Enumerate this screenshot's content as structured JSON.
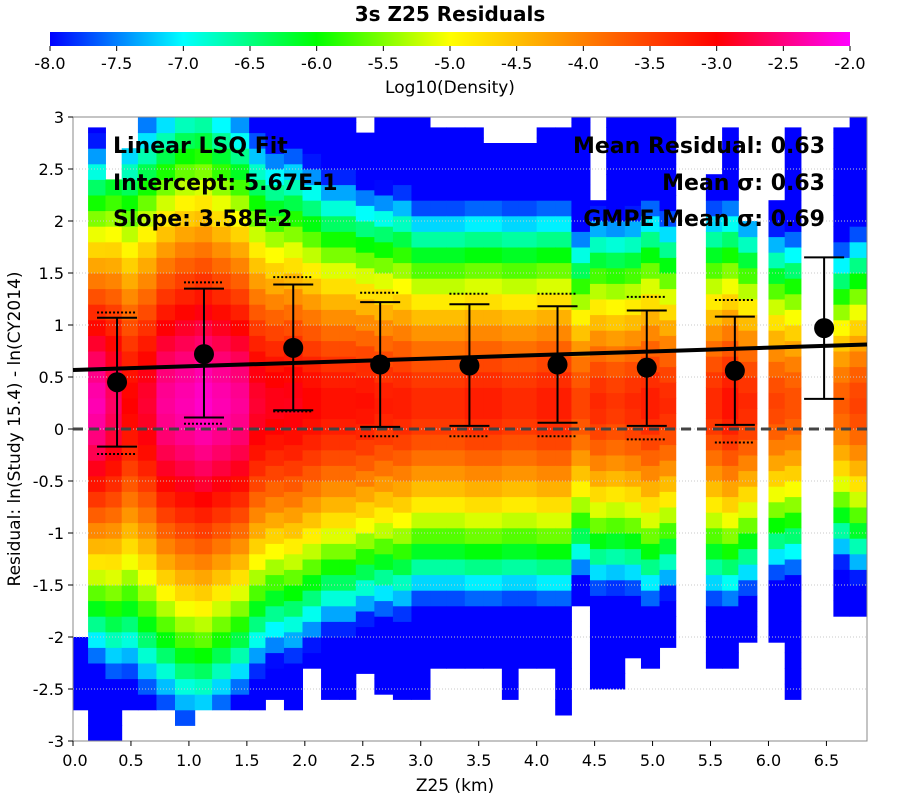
{
  "chart_data": {
    "type": "heatmap",
    "title": "3s Z25 Residuals",
    "xlabel": "Z25 (km)",
    "ylabel": "Residual: ln(Study 15.4) - ln(CY2014)",
    "xlim": [
      0.0,
      6.85
    ],
    "ylim": [
      -3,
      3
    ],
    "x_ticks": [
      "0.0",
      "0.5",
      "1.0",
      "1.5",
      "2.0",
      "2.5",
      "3.0",
      "3.5",
      "4.0",
      "4.5",
      "5.0",
      "5.5",
      "6.0",
      "6.5"
    ],
    "y_ticks": [
      "-3",
      "-2.5",
      "-2",
      "-1.5",
      "-1",
      "-0.5",
      "0",
      "0.5",
      "1",
      "1.5",
      "2",
      "2.5",
      "3"
    ],
    "grid": true,
    "colorbar": {
      "label": "Log10(Density)",
      "min": -8.0,
      "max": -2.0,
      "ticks": [
        "-8.0",
        "-7.5",
        "-7.0",
        "-6.5",
        "-6.0",
        "-5.5",
        "-5.0",
        "-4.5",
        "-4.0",
        "-3.5",
        "-3.0",
        "-2.5",
        "-2.0"
      ],
      "colors": [
        "#0000ff",
        "#00ffff",
        "#00ff00",
        "#ffff00",
        "#ff8000",
        "#ff0000",
        "#ff00ff"
      ]
    },
    "density_columns": [
      {
        "x0": 0.0,
        "x1": 0.13,
        "ymin": -2.7,
        "ymax": -2.0,
        "peak": -2.1,
        "spread": 1.6
      },
      {
        "x0": 0.13,
        "x1": 0.28,
        "ymin": -3.0,
        "ymax": 2.9,
        "peak": -2.3,
        "spread": 2.2
      },
      {
        "x0": 0.28,
        "x1": 0.42,
        "ymin": -3.0,
        "ymax": 2.4,
        "peak": -2.6,
        "spread": 2.4
      },
      {
        "x0": 0.42,
        "x1": 0.56,
        "ymin": -2.7,
        "ymax": 2.7,
        "peak": -3.0,
        "spread": 2.5
      },
      {
        "x0": 0.56,
        "x1": 0.72,
        "ymin": -2.7,
        "ymax": 3.0,
        "peak": -2.8,
        "spread": 2.6
      },
      {
        "x0": 0.72,
        "x1": 0.88,
        "ymin": -2.7,
        "ymax": 3.0,
        "peak": -2.4,
        "spread": 2.6
      },
      {
        "x0": 0.88,
        "x1": 1.05,
        "ymin": -2.85,
        "ymax": 3.0,
        "peak": -2.3,
        "spread": 2.7
      },
      {
        "x0": 1.05,
        "x1": 1.2,
        "ymin": -2.7,
        "ymax": 3.0,
        "peak": -2.2,
        "spread": 2.7
      },
      {
        "x0": 1.2,
        "x1": 1.36,
        "ymin": -2.7,
        "ymax": 3.0,
        "peak": -2.3,
        "spread": 2.6
      },
      {
        "x0": 1.36,
        "x1": 1.52,
        "ymin": -2.7,
        "ymax": 3.0,
        "peak": -2.4,
        "spread": 2.5
      },
      {
        "x0": 1.52,
        "x1": 1.66,
        "ymin": -2.7,
        "ymax": 3.0,
        "peak": -2.8,
        "spread": 2.4
      },
      {
        "x0": 1.66,
        "x1": 1.82,
        "ymin": -2.6,
        "ymax": 3.0,
        "peak": -2.9,
        "spread": 2.3
      },
      {
        "x0": 1.82,
        "x1": 1.98,
        "ymin": -2.7,
        "ymax": 3.0,
        "peak": -2.9,
        "spread": 2.3
      },
      {
        "x0": 1.98,
        "x1": 2.14,
        "ymin": -2.3,
        "ymax": 3.0,
        "peak": -3.0,
        "spread": 2.2
      },
      {
        "x0": 2.14,
        "x1": 2.3,
        "ymin": -2.6,
        "ymax": 3.0,
        "peak": -3.1,
        "spread": 2.1
      },
      {
        "x0": 2.3,
        "x1": 2.44,
        "ymin": -2.6,
        "ymax": 3.0,
        "peak": -3.1,
        "spread": 2.1
      },
      {
        "x0": 2.44,
        "x1": 2.6,
        "ymin": -2.35,
        "ymax": 2.85,
        "peak": -3.1,
        "spread": 2.0
      },
      {
        "x0": 2.6,
        "x1": 2.76,
        "ymin": -2.55,
        "ymax": 3.0,
        "peak": -3.2,
        "spread": 2.0
      },
      {
        "x0": 2.76,
        "x1": 2.92,
        "ymin": -2.6,
        "ymax": 3.0,
        "peak": -3.2,
        "spread": 2.0
      },
      {
        "x0": 2.92,
        "x1": 3.08,
        "ymin": -2.6,
        "ymax": 3.0,
        "peak": -3.3,
        "spread": 1.9
      },
      {
        "x0": 3.08,
        "x1": 3.22,
        "ymin": -2.3,
        "ymax": 2.9,
        "peak": -3.3,
        "spread": 1.9
      },
      {
        "x0": 3.22,
        "x1": 3.38,
        "ymin": -2.3,
        "ymax": 2.9,
        "peak": -3.3,
        "spread": 1.9
      },
      {
        "x0": 3.38,
        "x1": 3.54,
        "ymin": -2.3,
        "ymax": 2.9,
        "peak": -3.2,
        "spread": 1.9
      },
      {
        "x0": 3.54,
        "x1": 3.7,
        "ymin": -2.3,
        "ymax": 2.75,
        "peak": -3.2,
        "spread": 1.9
      },
      {
        "x0": 3.7,
        "x1": 3.84,
        "ymin": -2.6,
        "ymax": 2.75,
        "peak": -3.3,
        "spread": 1.9
      },
      {
        "x0": 3.84,
        "x1": 4.0,
        "ymin": -2.3,
        "ymax": 2.75,
        "peak": -3.3,
        "spread": 1.9
      },
      {
        "x0": 4.0,
        "x1": 4.16,
        "ymin": -2.3,
        "ymax": 2.9,
        "peak": -3.2,
        "spread": 1.9
      },
      {
        "x0": 4.16,
        "x1": 4.3,
        "ymin": -2.75,
        "ymax": 2.9,
        "peak": -3.2,
        "spread": 1.9
      },
      {
        "x0": 4.3,
        "x1": 4.46,
        "ymin": -1.7,
        "ymax": 3.0,
        "peak": -3.5,
        "spread": 1.7
      },
      {
        "x0": 4.46,
        "x1": 4.6,
        "ymin": -2.5,
        "ymax": 2.2,
        "peak": -3.3,
        "spread": 1.8
      },
      {
        "x0": 4.6,
        "x1": 4.76,
        "ymin": -2.5,
        "ymax": 3.0,
        "peak": -3.4,
        "spread": 1.8
      },
      {
        "x0": 4.76,
        "x1": 4.9,
        "ymin": -2.2,
        "ymax": 3.0,
        "peak": -3.3,
        "spread": 1.8
      },
      {
        "x0": 4.9,
        "x1": 5.06,
        "ymin": -2.3,
        "ymax": 3.0,
        "peak": -3.2,
        "spread": 1.9
      },
      {
        "x0": 5.06,
        "x1": 5.2,
        "ymin": -2.1,
        "ymax": 3.0,
        "peak": -3.3,
        "spread": 1.8
      },
      {
        "x0": 5.46,
        "x1": 5.6,
        "ymin": -2.3,
        "ymax": 2.45,
        "peak": -3.3,
        "spread": 1.9
      },
      {
        "x0": 5.6,
        "x1": 5.74,
        "ymin": -2.3,
        "ymax": 2.9,
        "peak": -3.1,
        "spread": 1.9
      },
      {
        "x0": 5.74,
        "x1": 5.9,
        "ymin": -2.05,
        "ymax": 2.0,
        "peak": -3.3,
        "spread": 1.8
      },
      {
        "x0": 6.0,
        "x1": 6.14,
        "ymin": -2.05,
        "ymax": 2.2,
        "peak": -3.5,
        "spread": 1.7
      },
      {
        "x0": 6.14,
        "x1": 6.28,
        "ymin": -2.6,
        "ymax": 2.9,
        "peak": -3.6,
        "spread": 1.7
      },
      {
        "x0": 6.56,
        "x1": 6.7,
        "ymin": -1.8,
        "ymax": 2.9,
        "peak": -3.7,
        "spread": 1.6
      },
      {
        "x0": 6.7,
        "x1": 6.85,
        "ymin": -1.8,
        "ymax": 3.0,
        "peak": -3.5,
        "spread": 1.7
      }
    ],
    "bins": [
      {
        "x": 0.38,
        "mean": 0.45,
        "lower": -0.17,
        "upper": 1.07,
        "sigma_lower": -0.24,
        "sigma_upper": 1.12
      },
      {
        "x": 1.13,
        "mean": 0.72,
        "lower": 0.11,
        "upper": 1.35,
        "sigma_lower": 0.05,
        "sigma_upper": 1.41
      },
      {
        "x": 1.9,
        "mean": 0.78,
        "lower": 0.18,
        "upper": 1.39,
        "sigma_lower": 0.17,
        "sigma_upper": 1.46
      },
      {
        "x": 2.65,
        "mean": 0.62,
        "lower": 0.02,
        "upper": 1.22,
        "sigma_lower": -0.07,
        "sigma_upper": 1.31
      },
      {
        "x": 3.42,
        "mean": 0.61,
        "lower": 0.03,
        "upper": 1.2,
        "sigma_lower": -0.07,
        "sigma_upper": 1.3
      },
      {
        "x": 4.18,
        "mean": 0.62,
        "lower": 0.06,
        "upper": 1.18,
        "sigma_lower": -0.07,
        "sigma_upper": 1.3
      },
      {
        "x": 4.95,
        "mean": 0.59,
        "lower": 0.03,
        "upper": 1.14,
        "sigma_lower": -0.1,
        "sigma_upper": 1.27
      },
      {
        "x": 5.71,
        "mean": 0.56,
        "lower": 0.04,
        "upper": 1.08,
        "sigma_lower": -0.13,
        "sigma_upper": 1.24
      },
      {
        "x": 6.48,
        "mean": 0.97,
        "lower": 0.29,
        "upper": 1.65,
        "sigma_lower": null,
        "sigma_upper": null
      }
    ],
    "fit_line": {
      "intercept": 0.567,
      "slope": 0.0358
    },
    "zero_line": 0,
    "annotations": {
      "fit_title": "Linear LSQ Fit",
      "intercept": "Intercept: 5.67E-1",
      "slope": "Slope: 3.58E-2",
      "mean_residual": "Mean Residual: 0.63",
      "mean_sigma": "Mean σ: 0.63",
      "gmpe_sigma": "GMPE Mean σ: 0.69"
    }
  }
}
